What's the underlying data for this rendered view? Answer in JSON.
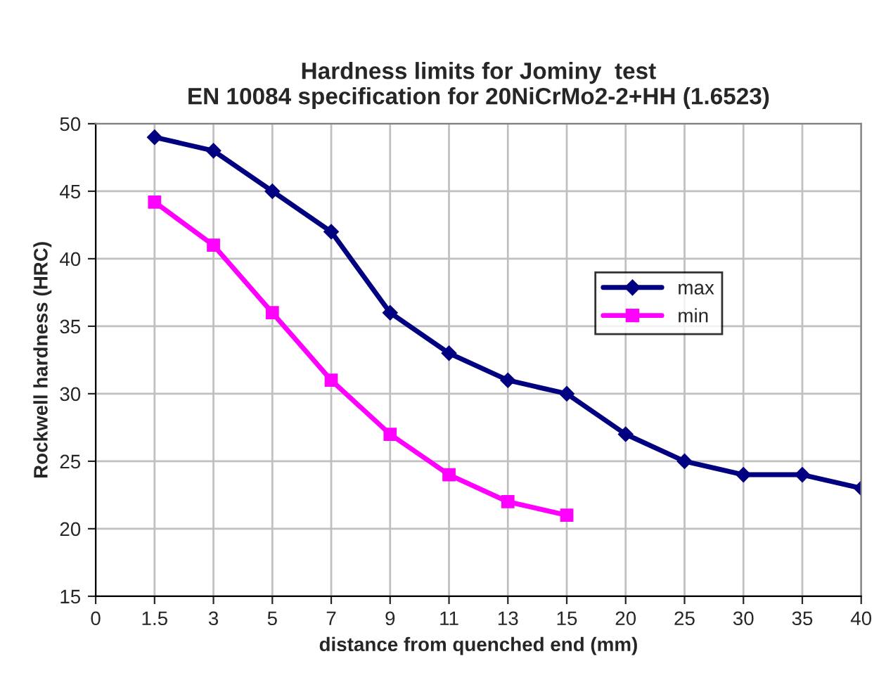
{
  "chart_data": {
    "type": "line",
    "title": "Hardness limits for Jominy  test\nEN 10084 specification for 20NiCrMo2-2+HH (1.6523)",
    "xlabel": "distance from quenched end (mm)",
    "ylabel": "Rockwell hardness (HRC)",
    "categories": [
      "0",
      "1.5",
      "3",
      "5",
      "7",
      "9",
      "11",
      "13",
      "15",
      "20",
      "25",
      "30",
      "35",
      "40"
    ],
    "series": [
      {
        "name": "max",
        "color": "#000080",
        "marker": "diamond",
        "values": [
          null,
          49,
          48,
          45,
          42,
          36,
          33,
          31,
          30,
          27,
          25,
          24,
          24,
          23
        ]
      },
      {
        "name": "min",
        "color": "#ff00ff",
        "marker": "square",
        "values": [
          null,
          44.2,
          41,
          36,
          31,
          27,
          24,
          22,
          21,
          null,
          null,
          null,
          null,
          null
        ]
      }
    ],
    "ylim": [
      15,
      50
    ],
    "yticks": [
      15,
      20,
      25,
      30,
      35,
      40,
      45,
      50
    ],
    "grid": true,
    "legend": "right",
    "line_style": "solid"
  }
}
